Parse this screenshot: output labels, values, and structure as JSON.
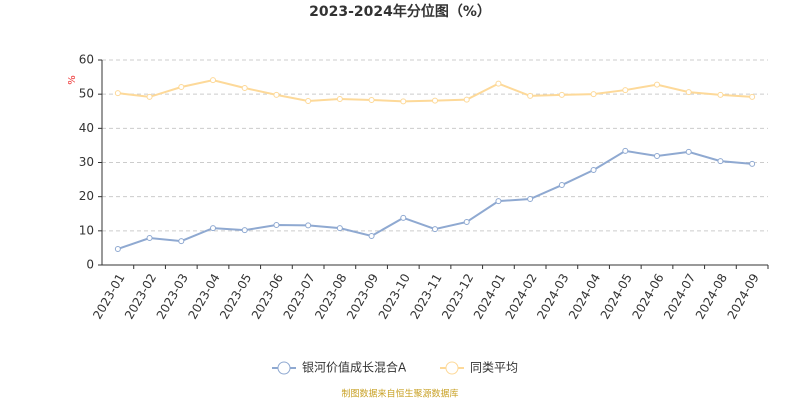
{
  "chart_data": {
    "type": "line",
    "title": "2023-2024年分位图（%）",
    "y_label": "%",
    "categories": [
      "2023-01",
      "2023-02",
      "2023-03",
      "2023-04",
      "2023-05",
      "2023-06",
      "2023-07",
      "2023-08",
      "2023-09",
      "2023-10",
      "2023-11",
      "2023-12",
      "2024-01",
      "2024-02",
      "2024-03",
      "2024-04",
      "2024-05",
      "2024-06",
      "2024-07",
      "2024-08",
      "2024-09"
    ],
    "series": [
      {
        "name": "银河价值成长混合A",
        "color": "#8fa9d1",
        "values": [
          4.7,
          7.9,
          7.0,
          10.8,
          10.2,
          11.7,
          11.6,
          10.8,
          8.5,
          13.8,
          10.5,
          12.6,
          18.7,
          19.3,
          23.4,
          27.8,
          33.4,
          31.9,
          33.1,
          30.4,
          29.6
        ]
      },
      {
        "name": "同类平均",
        "color": "#fdd999",
        "values": [
          50.3,
          49.2,
          52.1,
          54.1,
          51.8,
          49.8,
          48.0,
          48.6,
          48.3,
          47.9,
          48.1,
          48.4,
          53.1,
          49.5,
          49.8,
          50.0,
          51.2,
          52.8,
          50.6,
          49.8,
          49.2
        ]
      }
    ],
    "ylim": [
      0,
      60
    ],
    "yticks": [
      0,
      10,
      20,
      30,
      40,
      50,
      60
    ],
    "grid": true,
    "legend": "bottom",
    "footer": "制图数据来自恒生聚源数据库"
  }
}
